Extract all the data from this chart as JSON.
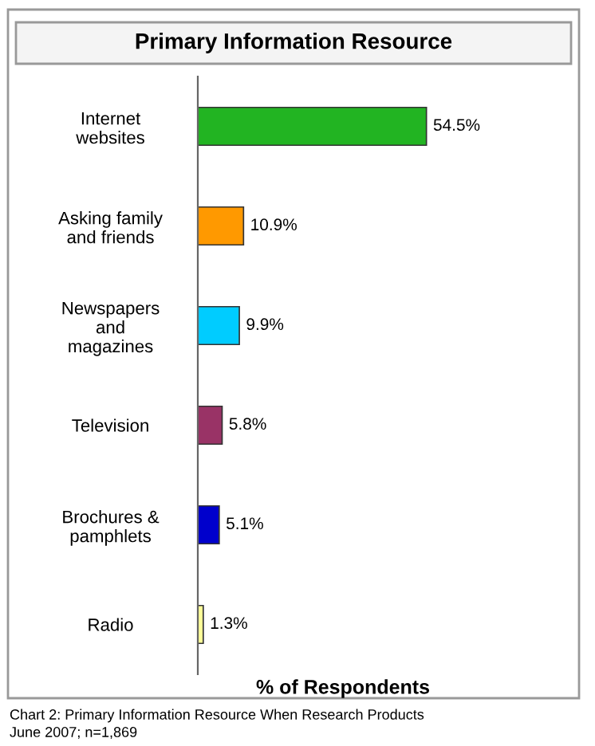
{
  "chart_data": {
    "type": "bar",
    "orientation": "horizontal",
    "title": "Primary Information Resource",
    "xlabel": "% of Respondents",
    "categories": [
      "Internet\nwebsites",
      "Asking family\nand friends",
      "Newspapers\nand\nmagazines",
      "Television",
      "Brochures &\npamphlets",
      "Radio"
    ],
    "values": [
      54.5,
      10.9,
      9.9,
      5.8,
      5.1,
      1.3
    ],
    "colors": [
      "#22b422",
      "#ff9900",
      "#00ccff",
      "#993366",
      "#0000cc",
      "#ffff99"
    ],
    "value_labels": [
      "54.5%",
      "10.9%",
      "9.9%",
      "5.8%",
      "5.1%",
      "1.3%"
    ],
    "annotations": [
      "Chart 2: Primary Information Resource When Research Products",
      "June 2007; n=1,869"
    ],
    "grid": false,
    "legend": false
  }
}
